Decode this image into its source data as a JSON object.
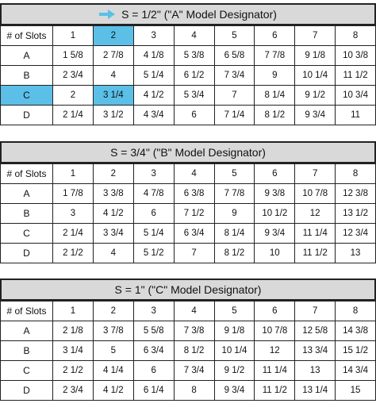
{
  "highlight_color": "#5bbfe8",
  "arrow_icon": "right-arrow-icon",
  "sections": [
    {
      "title": "S = 1/2\" (\"A\" Model Designator)",
      "corner": "# of Slots",
      "columns": [
        "1",
        "2",
        "3",
        "4",
        "5",
        "6",
        "7",
        "8"
      ],
      "rows": [
        {
          "label": "A",
          "cells": [
            "1 5/8",
            "2 7/8",
            "4 1/8",
            "5 3/8",
            "6 5/8",
            "7 7/8",
            "9 1/8",
            "10 3/8"
          ]
        },
        {
          "label": "B",
          "cells": [
            "2 3/4",
            "4",
            "5 1/4",
            "6 1/2",
            "7 3/4",
            "9",
            "10 1/4",
            "11 1/2"
          ]
        },
        {
          "label": "C",
          "cells": [
            "2",
            "3 1/4",
            "4 1/2",
            "5 3/4",
            "7",
            "8 1/4",
            "9 1/2",
            "10 3/4"
          ]
        },
        {
          "label": "D",
          "cells": [
            "2 1/4",
            "3 1/2",
            "4 3/4",
            "6",
            "7 1/4",
            "8 1/2",
            "9 3/4",
            "11"
          ]
        }
      ]
    },
    {
      "title": "S = 3/4\" (\"B\" Model Designator)",
      "corner": "# of Slots",
      "columns": [
        "1",
        "2",
        "3",
        "4",
        "5",
        "6",
        "7",
        "8"
      ],
      "rows": [
        {
          "label": "A",
          "cells": [
            "1 7/8",
            "3 3/8",
            "4 7/8",
            "6 3/8",
            "7 7/8",
            "9 3/8",
            "10 7/8",
            "12 3/8"
          ]
        },
        {
          "label": "B",
          "cells": [
            "3",
            "4 1/2",
            "6",
            "7 1/2",
            "9",
            "10 1/2",
            "12",
            "13 1/2"
          ]
        },
        {
          "label": "C",
          "cells": [
            "2 1/4",
            "3 3/4",
            "5 1/4",
            "6 3/4",
            "8 1/4",
            "9 3/4",
            "11 1/4",
            "12 3/4"
          ]
        },
        {
          "label": "D",
          "cells": [
            "2 1/2",
            "4",
            "5 1/2",
            "7",
            "8 1/2",
            "10",
            "11 1/2",
            "13"
          ]
        }
      ]
    },
    {
      "title": "S = 1\" (\"C\" Model Designator)",
      "corner": "# of Slots",
      "columns": [
        "1",
        "2",
        "3",
        "4",
        "5",
        "6",
        "7",
        "8"
      ],
      "rows": [
        {
          "label": "A",
          "cells": [
            "2 1/8",
            "3 7/8",
            "5 5/8",
            "7 3/8",
            "9 1/8",
            "10 7/8",
            "12 5/8",
            "14 3/8"
          ]
        },
        {
          "label": "B",
          "cells": [
            "3 1/4",
            "5",
            "6 3/4",
            "8 1/2",
            "10 1/4",
            "12",
            "13 3/4",
            "15 1/2"
          ]
        },
        {
          "label": "C",
          "cells": [
            "2 1/2",
            "4 1/4",
            "6",
            "7 3/4",
            "9 1/2",
            "11 1/4",
            "13",
            "14 3/4"
          ]
        },
        {
          "label": "D",
          "cells": [
            "2 3/4",
            "4 1/2",
            "6 1/4",
            "8",
            "9 3/4",
            "11 1/2",
            "13 1/4",
            "15"
          ]
        }
      ]
    }
  ]
}
